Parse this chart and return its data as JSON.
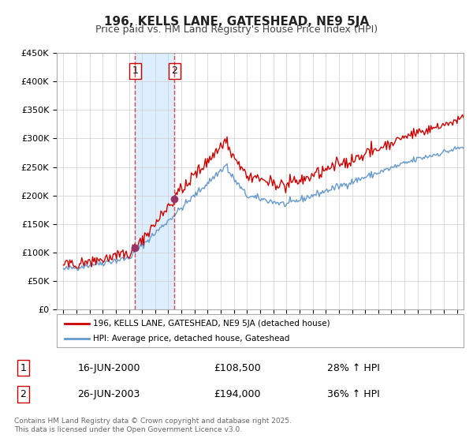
{
  "title": "196, KELLS LANE, GATESHEAD, NE9 5JA",
  "subtitle": "Price paid vs. HM Land Registry's House Price Index (HPI)",
  "ylabel": "",
  "background_color": "#ffffff",
  "plot_bg_color": "#ffffff",
  "grid_color": "#cccccc",
  "sale1_date_year": 2000.46,
  "sale1_price": 108500,
  "sale1_label": "1",
  "sale1_date_str": "16-JUN-2000",
  "sale1_hpi_pct": "28% ↑ HPI",
  "sale2_date_year": 2003.48,
  "sale2_price": 194000,
  "sale2_label": "2",
  "sale2_date_str": "26-JUN-2003",
  "sale2_hpi_pct": "36% ↑ HPI",
  "hpi_line_color": "#6699cc",
  "price_line_color": "#cc0000",
  "sale_dot_color": "#993366",
  "shaded_region_color": "#ddeeff",
  "legend_label_price": "196, KELLS LANE, GATESHEAD, NE9 5JA (detached house)",
  "legend_label_hpi": "HPI: Average price, detached house, Gateshead",
  "footnote": "Contains HM Land Registry data © Crown copyright and database right 2025.\nThis data is licensed under the Open Government Licence v3.0.",
  "ylim": [
    0,
    450000
  ],
  "yticks": [
    0,
    50000,
    100000,
    150000,
    200000,
    250000,
    300000,
    350000,
    400000,
    450000
  ],
  "xlim_start": 1994.5,
  "xlim_end": 2025.5
}
